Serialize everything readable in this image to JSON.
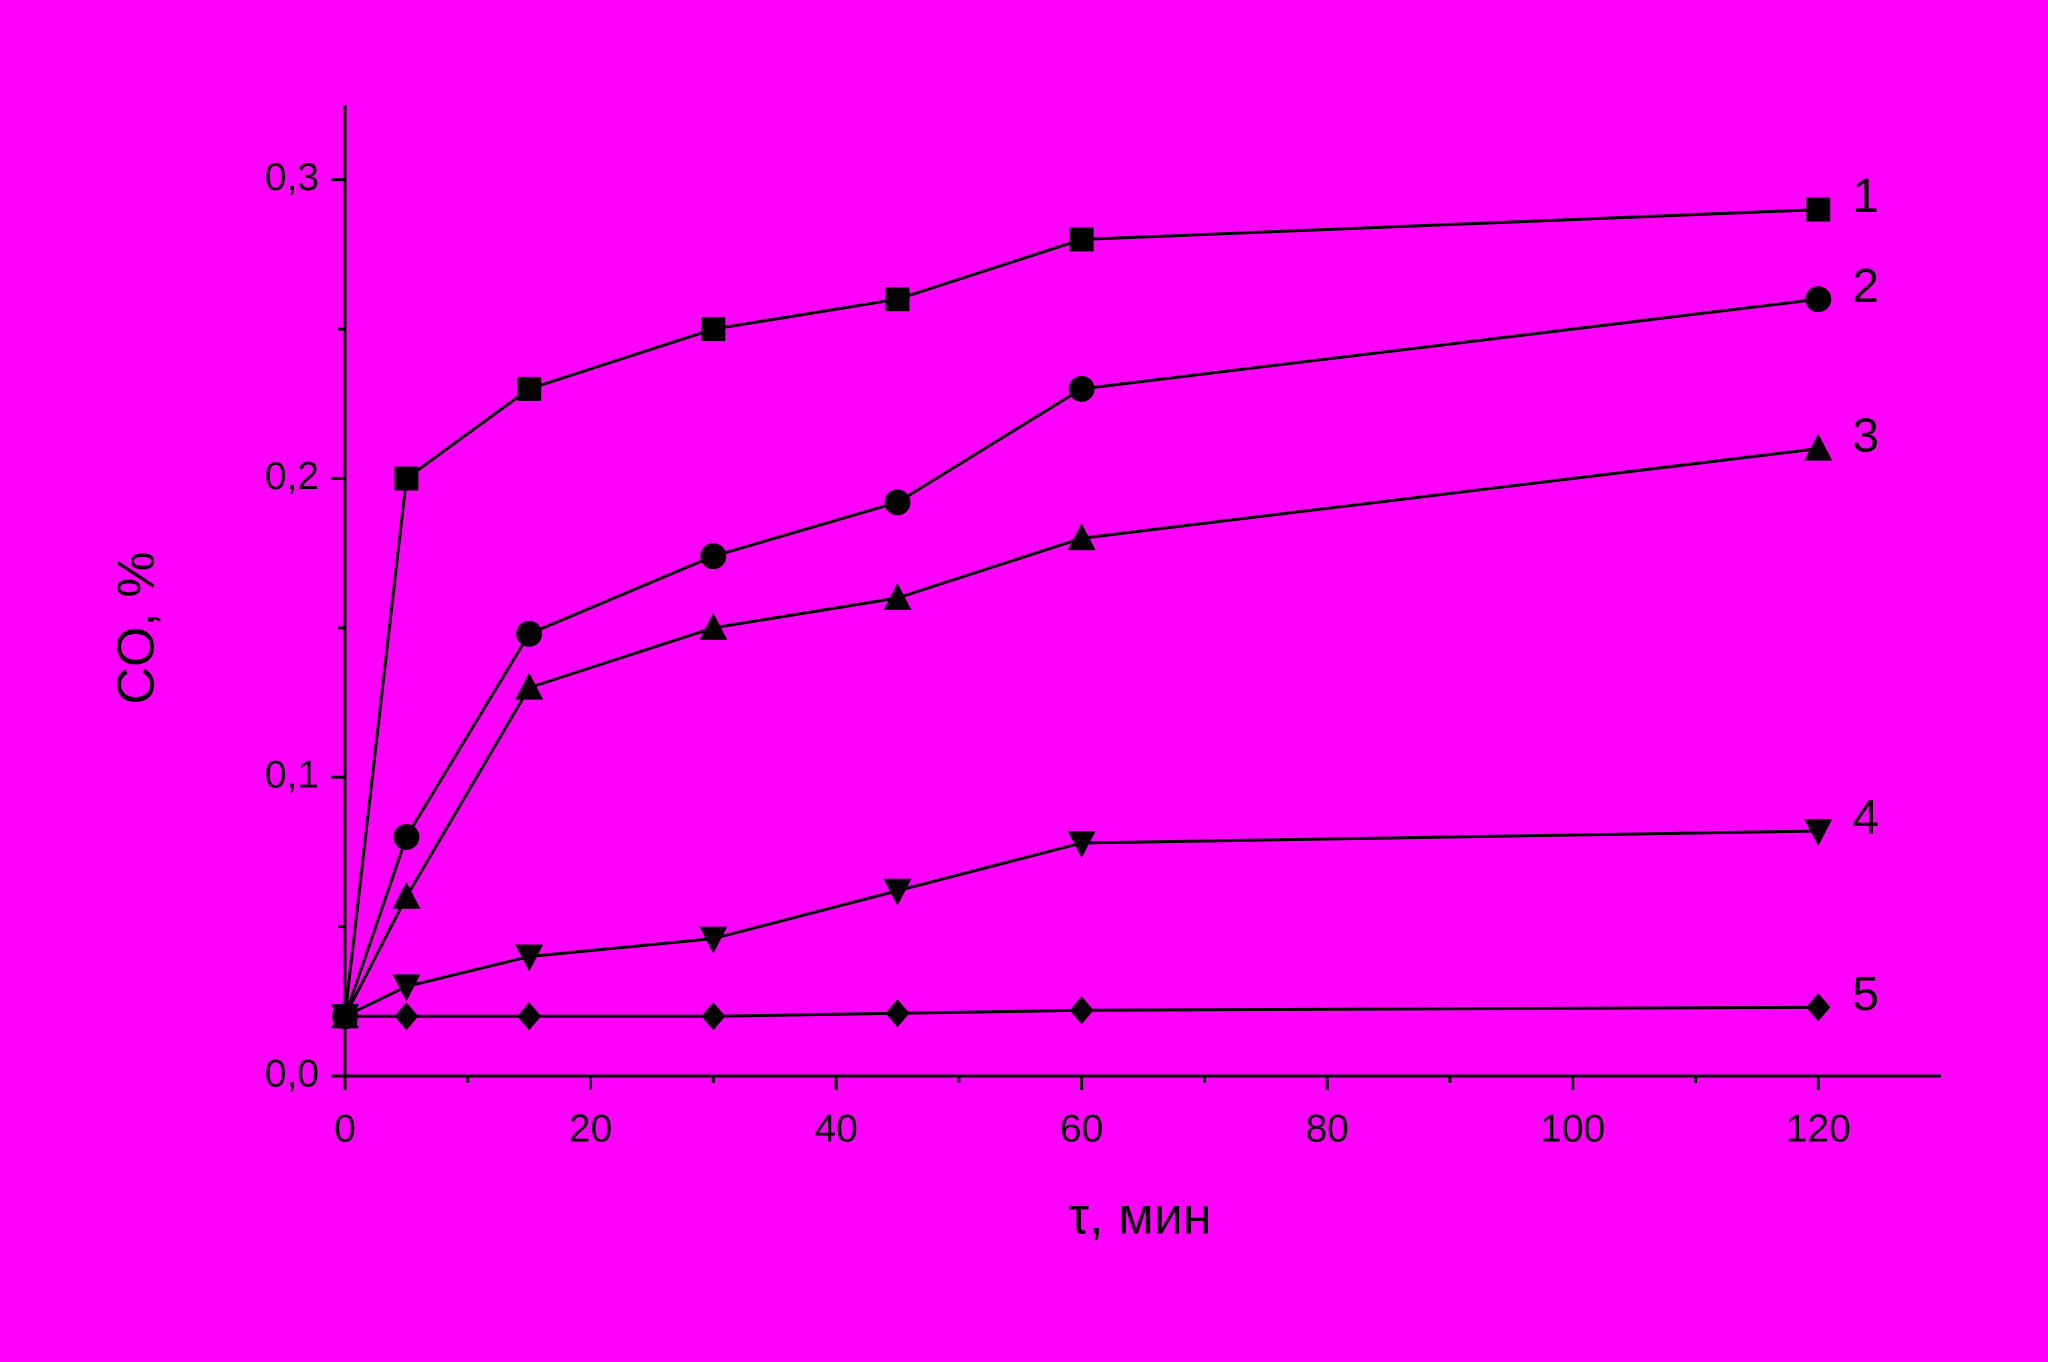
{
  "chart_data": {
    "type": "line",
    "x_label": "τ, мин",
    "y_label": "CO, %",
    "x": [
      0,
      5,
      15,
      30,
      45,
      60,
      120
    ],
    "series": [
      {
        "name": "1",
        "color": "#000000",
        "marker": "square",
        "values": [
          0.02,
          0.2,
          0.23,
          0.25,
          0.26,
          0.28,
          0.29
        ]
      },
      {
        "name": "2",
        "color": "#000000",
        "marker": "circle",
        "values": [
          0.02,
          0.08,
          0.148,
          0.174,
          0.192,
          0.23,
          0.26
        ]
      },
      {
        "name": "3",
        "color": "#000000",
        "marker": "triangle-up",
        "values": [
          0.02,
          0.06,
          0.13,
          0.15,
          0.16,
          0.18,
          0.21
        ]
      },
      {
        "name": "4",
        "color": "#000000",
        "marker": "triangle-down",
        "values": [
          0.02,
          0.03,
          0.04,
          0.046,
          0.062,
          0.078,
          0.082
        ]
      },
      {
        "name": "5",
        "color": "#000000",
        "marker": "diamond",
        "values": [
          0.02,
          0.02,
          0.02,
          0.02,
          0.021,
          0.022,
          0.023
        ]
      }
    ],
    "xlim": [
      0,
      130
    ],
    "ylim": [
      0,
      0.325
    ],
    "xticks": [
      0,
      20,
      40,
      60,
      80,
      100,
      120
    ],
    "yticks": [
      {
        "value": 0,
        "label": "0,0"
      },
      {
        "value": 0.1,
        "label": "0,1"
      },
      {
        "value": 0.2,
        "label": "0,2"
      },
      {
        "value": 0.3,
        "label": "0,3"
      }
    ],
    "background": "#ff00ff",
    "grid": false
  }
}
